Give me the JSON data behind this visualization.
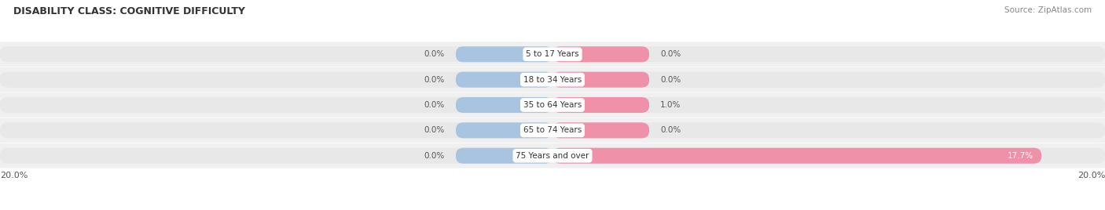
{
  "title": "DISABILITY CLASS: COGNITIVE DIFFICULTY",
  "source": "Source: ZipAtlas.com",
  "categories": [
    "5 to 17 Years",
    "18 to 34 Years",
    "35 to 64 Years",
    "65 to 74 Years",
    "75 Years and over"
  ],
  "male_values": [
    0.0,
    0.0,
    0.0,
    0.0,
    0.0
  ],
  "female_values": [
    0.0,
    0.0,
    1.0,
    0.0,
    17.7
  ],
  "x_max": 20.0,
  "male_color": "#a8c4e0",
  "female_color": "#f091aa",
  "bar_bg_color": "#e8e8e8",
  "row_bg_color": "#f0f0f0",
  "bar_height": 0.62,
  "label_color": "#555555",
  "title_color": "#333333",
  "axis_label_color": "#555555",
  "legend_male_color": "#a8c4e0",
  "legend_female_color": "#f091aa",
  "default_bar_width": 3.5,
  "center_label_box_color": "white"
}
